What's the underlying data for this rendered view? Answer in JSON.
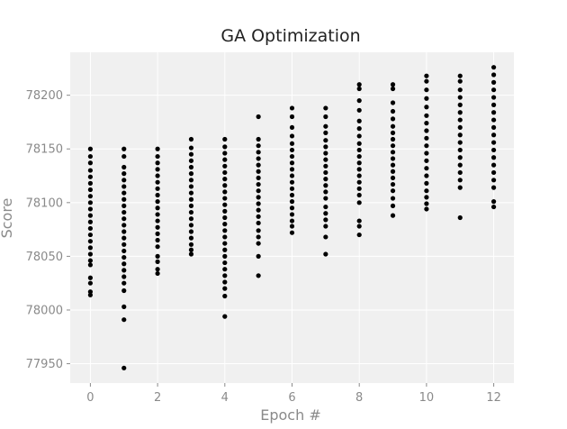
{
  "chart_data": {
    "type": "scatter",
    "title": "GA Optimization",
    "xlabel": "Epoch #",
    "ylabel": "Score",
    "xlim": [
      -0.6,
      12.6
    ],
    "ylim": [
      77932,
      78240
    ],
    "x_ticks": [
      0,
      2,
      4,
      6,
      8,
      10,
      12
    ],
    "y_ticks": [
      77950,
      78000,
      78050,
      78100,
      78150,
      78200
    ],
    "grid": true,
    "legend": "none",
    "colors": {
      "background": "#ffffff",
      "plot_area": "#f0f0f0",
      "grid": "#ffffff",
      "points": "#000000"
    },
    "series": [
      {
        "points": [
          {
            "x": 0,
            "y": 78150
          },
          {
            "x": 0,
            "y": 78143
          },
          {
            "x": 0,
            "y": 78137
          },
          {
            "x": 0,
            "y": 78130
          },
          {
            "x": 0,
            "y": 78124
          },
          {
            "x": 0,
            "y": 78118
          },
          {
            "x": 0,
            "y": 78112
          },
          {
            "x": 0,
            "y": 78106
          },
          {
            "x": 0,
            "y": 78100
          },
          {
            "x": 0,
            "y": 78094
          },
          {
            "x": 0,
            "y": 78088
          },
          {
            "x": 0,
            "y": 78082
          },
          {
            "x": 0,
            "y": 78076
          },
          {
            "x": 0,
            "y": 78070
          },
          {
            "x": 0,
            "y": 78064
          },
          {
            "x": 0,
            "y": 78058
          },
          {
            "x": 0,
            "y": 78052
          },
          {
            "x": 0,
            "y": 78046
          },
          {
            "x": 0,
            "y": 78042
          },
          {
            "x": 0,
            "y": 78030
          },
          {
            "x": 0,
            "y": 78025
          },
          {
            "x": 0,
            "y": 78017
          },
          {
            "x": 0,
            "y": 78014
          },
          {
            "x": 1,
            "y": 78150
          },
          {
            "x": 1,
            "y": 78143
          },
          {
            "x": 1,
            "y": 78133
          },
          {
            "x": 1,
            "y": 78127
          },
          {
            "x": 1,
            "y": 78121
          },
          {
            "x": 1,
            "y": 78115
          },
          {
            "x": 1,
            "y": 78109
          },
          {
            "x": 1,
            "y": 78103
          },
          {
            "x": 1,
            "y": 78097
          },
          {
            "x": 1,
            "y": 78091
          },
          {
            "x": 1,
            "y": 78085
          },
          {
            "x": 1,
            "y": 78079
          },
          {
            "x": 1,
            "y": 78073
          },
          {
            "x": 1,
            "y": 78067
          },
          {
            "x": 1,
            "y": 78061
          },
          {
            "x": 1,
            "y": 78055
          },
          {
            "x": 1,
            "y": 78049
          },
          {
            "x": 1,
            "y": 78043
          },
          {
            "x": 1,
            "y": 78037
          },
          {
            "x": 1,
            "y": 78031
          },
          {
            "x": 1,
            "y": 78025
          },
          {
            "x": 1,
            "y": 78018
          },
          {
            "x": 1,
            "y": 78003
          },
          {
            "x": 1,
            "y": 77991
          },
          {
            "x": 1,
            "y": 77946
          },
          {
            "x": 2,
            "y": 78150
          },
          {
            "x": 2,
            "y": 78143
          },
          {
            "x": 2,
            "y": 78137
          },
          {
            "x": 2,
            "y": 78131
          },
          {
            "x": 2,
            "y": 78125
          },
          {
            "x": 2,
            "y": 78119
          },
          {
            "x": 2,
            "y": 78113
          },
          {
            "x": 2,
            "y": 78107
          },
          {
            "x": 2,
            "y": 78101
          },
          {
            "x": 2,
            "y": 78095
          },
          {
            "x": 2,
            "y": 78089
          },
          {
            "x": 2,
            "y": 78083
          },
          {
            "x": 2,
            "y": 78077
          },
          {
            "x": 2,
            "y": 78071
          },
          {
            "x": 2,
            "y": 78065
          },
          {
            "x": 2,
            "y": 78059
          },
          {
            "x": 2,
            "y": 78050
          },
          {
            "x": 2,
            "y": 78045
          },
          {
            "x": 2,
            "y": 78038
          },
          {
            "x": 2,
            "y": 78034
          },
          {
            "x": 3,
            "y": 78159
          },
          {
            "x": 3,
            "y": 78151
          },
          {
            "x": 3,
            "y": 78145
          },
          {
            "x": 3,
            "y": 78139
          },
          {
            "x": 3,
            "y": 78133
          },
          {
            "x": 3,
            "y": 78127
          },
          {
            "x": 3,
            "y": 78121
          },
          {
            "x": 3,
            "y": 78115
          },
          {
            "x": 3,
            "y": 78109
          },
          {
            "x": 3,
            "y": 78103
          },
          {
            "x": 3,
            "y": 78097
          },
          {
            "x": 3,
            "y": 78091
          },
          {
            "x": 3,
            "y": 78085
          },
          {
            "x": 3,
            "y": 78079
          },
          {
            "x": 3,
            "y": 78073
          },
          {
            "x": 3,
            "y": 78067
          },
          {
            "x": 3,
            "y": 78061
          },
          {
            "x": 3,
            "y": 78056
          },
          {
            "x": 3,
            "y": 78052
          },
          {
            "x": 4,
            "y": 78159
          },
          {
            "x": 4,
            "y": 78152
          },
          {
            "x": 4,
            "y": 78146
          },
          {
            "x": 4,
            "y": 78140
          },
          {
            "x": 4,
            "y": 78134
          },
          {
            "x": 4,
            "y": 78128
          },
          {
            "x": 4,
            "y": 78122
          },
          {
            "x": 4,
            "y": 78116
          },
          {
            "x": 4,
            "y": 78110
          },
          {
            "x": 4,
            "y": 78104
          },
          {
            "x": 4,
            "y": 78098
          },
          {
            "x": 4,
            "y": 78092
          },
          {
            "x": 4,
            "y": 78086
          },
          {
            "x": 4,
            "y": 78080
          },
          {
            "x": 4,
            "y": 78074
          },
          {
            "x": 4,
            "y": 78068
          },
          {
            "x": 4,
            "y": 78062
          },
          {
            "x": 4,
            "y": 78056
          },
          {
            "x": 4,
            "y": 78050
          },
          {
            "x": 4,
            "y": 78044
          },
          {
            "x": 4,
            "y": 78038
          },
          {
            "x": 4,
            "y": 78032
          },
          {
            "x": 4,
            "y": 78026
          },
          {
            "x": 4,
            "y": 78020
          },
          {
            "x": 4,
            "y": 78013
          },
          {
            "x": 4,
            "y": 77994
          },
          {
            "x": 5,
            "y": 78180
          },
          {
            "x": 5,
            "y": 78159
          },
          {
            "x": 5,
            "y": 78153
          },
          {
            "x": 5,
            "y": 78147
          },
          {
            "x": 5,
            "y": 78141
          },
          {
            "x": 5,
            "y": 78135
          },
          {
            "x": 5,
            "y": 78129
          },
          {
            "x": 5,
            "y": 78123
          },
          {
            "x": 5,
            "y": 78117
          },
          {
            "x": 5,
            "y": 78111
          },
          {
            "x": 5,
            "y": 78105
          },
          {
            "x": 5,
            "y": 78099
          },
          {
            "x": 5,
            "y": 78093
          },
          {
            "x": 5,
            "y": 78087
          },
          {
            "x": 5,
            "y": 78081
          },
          {
            "x": 5,
            "y": 78074
          },
          {
            "x": 5,
            "y": 78068
          },
          {
            "x": 5,
            "y": 78062
          },
          {
            "x": 5,
            "y": 78050
          },
          {
            "x": 5,
            "y": 78032
          },
          {
            "x": 6,
            "y": 78188
          },
          {
            "x": 6,
            "y": 78180
          },
          {
            "x": 6,
            "y": 78170
          },
          {
            "x": 6,
            "y": 78162
          },
          {
            "x": 6,
            "y": 78155
          },
          {
            "x": 6,
            "y": 78149
          },
          {
            "x": 6,
            "y": 78143
          },
          {
            "x": 6,
            "y": 78137
          },
          {
            "x": 6,
            "y": 78131
          },
          {
            "x": 6,
            "y": 78125
          },
          {
            "x": 6,
            "y": 78119
          },
          {
            "x": 6,
            "y": 78113
          },
          {
            "x": 6,
            "y": 78107
          },
          {
            "x": 6,
            "y": 78101
          },
          {
            "x": 6,
            "y": 78095
          },
          {
            "x": 6,
            "y": 78089
          },
          {
            "x": 6,
            "y": 78083
          },
          {
            "x": 6,
            "y": 78078
          },
          {
            "x": 6,
            "y": 78072
          },
          {
            "x": 7,
            "y": 78188
          },
          {
            "x": 7,
            "y": 78180
          },
          {
            "x": 7,
            "y": 78171
          },
          {
            "x": 7,
            "y": 78165
          },
          {
            "x": 7,
            "y": 78158
          },
          {
            "x": 7,
            "y": 78152
          },
          {
            "x": 7,
            "y": 78146
          },
          {
            "x": 7,
            "y": 78140
          },
          {
            "x": 7,
            "y": 78134
          },
          {
            "x": 7,
            "y": 78128
          },
          {
            "x": 7,
            "y": 78122
          },
          {
            "x": 7,
            "y": 78116
          },
          {
            "x": 7,
            "y": 78110
          },
          {
            "x": 7,
            "y": 78104
          },
          {
            "x": 7,
            "y": 78096
          },
          {
            "x": 7,
            "y": 78090
          },
          {
            "x": 7,
            "y": 78084
          },
          {
            "x": 7,
            "y": 78078
          },
          {
            "x": 7,
            "y": 78068
          },
          {
            "x": 7,
            "y": 78052
          },
          {
            "x": 8,
            "y": 78210
          },
          {
            "x": 8,
            "y": 78206
          },
          {
            "x": 8,
            "y": 78195
          },
          {
            "x": 8,
            "y": 78186
          },
          {
            "x": 8,
            "y": 78176
          },
          {
            "x": 8,
            "y": 78169
          },
          {
            "x": 8,
            "y": 78162
          },
          {
            "x": 8,
            "y": 78155
          },
          {
            "x": 8,
            "y": 78149
          },
          {
            "x": 8,
            "y": 78143
          },
          {
            "x": 8,
            "y": 78137
          },
          {
            "x": 8,
            "y": 78131
          },
          {
            "x": 8,
            "y": 78125
          },
          {
            "x": 8,
            "y": 78119
          },
          {
            "x": 8,
            "y": 78113
          },
          {
            "x": 8,
            "y": 78107
          },
          {
            "x": 8,
            "y": 78100
          },
          {
            "x": 8,
            "y": 78083
          },
          {
            "x": 8,
            "y": 78078
          },
          {
            "x": 8,
            "y": 78070
          },
          {
            "x": 9,
            "y": 78210
          },
          {
            "x": 9,
            "y": 78206
          },
          {
            "x": 9,
            "y": 78193
          },
          {
            "x": 9,
            "y": 78185
          },
          {
            "x": 9,
            "y": 78178
          },
          {
            "x": 9,
            "y": 78171
          },
          {
            "x": 9,
            "y": 78165
          },
          {
            "x": 9,
            "y": 78159
          },
          {
            "x": 9,
            "y": 78153
          },
          {
            "x": 9,
            "y": 78147
          },
          {
            "x": 9,
            "y": 78141
          },
          {
            "x": 9,
            "y": 78135
          },
          {
            "x": 9,
            "y": 78129
          },
          {
            "x": 9,
            "y": 78123
          },
          {
            "x": 9,
            "y": 78117
          },
          {
            "x": 9,
            "y": 78111
          },
          {
            "x": 9,
            "y": 78104
          },
          {
            "x": 9,
            "y": 78097
          },
          {
            "x": 9,
            "y": 78088
          },
          {
            "x": 10,
            "y": 78218
          },
          {
            "x": 10,
            "y": 78213
          },
          {
            "x": 10,
            "y": 78205
          },
          {
            "x": 10,
            "y": 78197
          },
          {
            "x": 10,
            "y": 78189
          },
          {
            "x": 10,
            "y": 78181
          },
          {
            "x": 10,
            "y": 78174
          },
          {
            "x": 10,
            "y": 78167
          },
          {
            "x": 10,
            "y": 78160
          },
          {
            "x": 10,
            "y": 78153
          },
          {
            "x": 10,
            "y": 78146
          },
          {
            "x": 10,
            "y": 78139
          },
          {
            "x": 10,
            "y": 78132
          },
          {
            "x": 10,
            "y": 78125
          },
          {
            "x": 10,
            "y": 78118
          },
          {
            "x": 10,
            "y": 78111
          },
          {
            "x": 10,
            "y": 78105
          },
          {
            "x": 10,
            "y": 78099
          },
          {
            "x": 10,
            "y": 78094
          },
          {
            "x": 11,
            "y": 78218
          },
          {
            "x": 11,
            "y": 78213
          },
          {
            "x": 11,
            "y": 78205
          },
          {
            "x": 11,
            "y": 78198
          },
          {
            "x": 11,
            "y": 78191
          },
          {
            "x": 11,
            "y": 78184
          },
          {
            "x": 11,
            "y": 78177
          },
          {
            "x": 11,
            "y": 78170
          },
          {
            "x": 11,
            "y": 78163
          },
          {
            "x": 11,
            "y": 78156
          },
          {
            "x": 11,
            "y": 78149
          },
          {
            "x": 11,
            "y": 78142
          },
          {
            "x": 11,
            "y": 78135
          },
          {
            "x": 11,
            "y": 78128
          },
          {
            "x": 11,
            "y": 78121
          },
          {
            "x": 11,
            "y": 78114
          },
          {
            "x": 11,
            "y": 78086
          },
          {
            "x": 12,
            "y": 78226
          },
          {
            "x": 12,
            "y": 78219
          },
          {
            "x": 12,
            "y": 78212
          },
          {
            "x": 12,
            "y": 78205
          },
          {
            "x": 12,
            "y": 78198
          },
          {
            "x": 12,
            "y": 78191
          },
          {
            "x": 12,
            "y": 78184
          },
          {
            "x": 12,
            "y": 78177
          },
          {
            "x": 12,
            "y": 78170
          },
          {
            "x": 12,
            "y": 78163
          },
          {
            "x": 12,
            "y": 78156
          },
          {
            "x": 12,
            "y": 78149
          },
          {
            "x": 12,
            "y": 78142
          },
          {
            "x": 12,
            "y": 78135
          },
          {
            "x": 12,
            "y": 78128
          },
          {
            "x": 12,
            "y": 78121
          },
          {
            "x": 12,
            "y": 78114
          },
          {
            "x": 12,
            "y": 78101
          },
          {
            "x": 12,
            "y": 78096
          }
        ]
      }
    ]
  }
}
